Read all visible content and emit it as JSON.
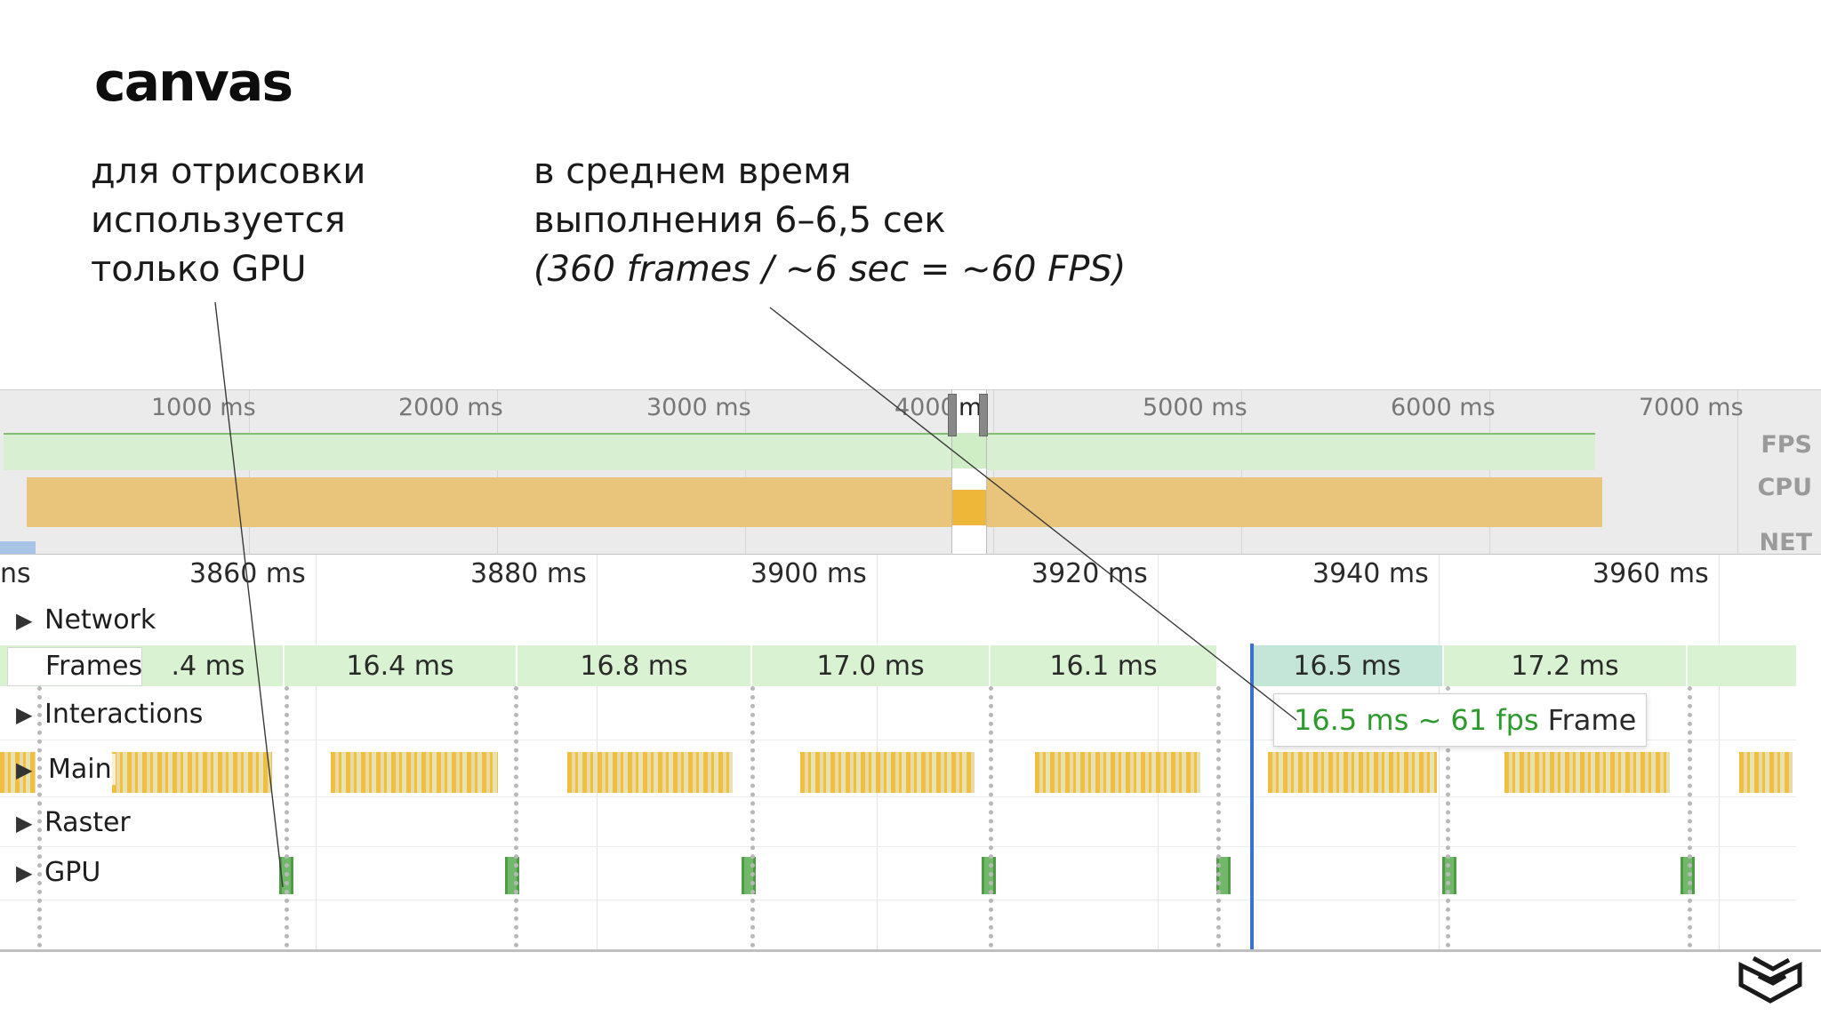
{
  "slide": {
    "title": "canvas",
    "note_left": [
      "для отрисовки",
      "используется",
      "только GPU"
    ],
    "note_right": [
      "в среднем время",
      "выполнения 6–6,5 сек"
    ],
    "note_right_italic": "(360 frames / ~6 sec = ~60 FPS)"
  },
  "overview": {
    "ticks": [
      "1000 ms",
      "2000 ms",
      "3000 ms",
      "4000",
      "5000 ms",
      "6000 ms",
      "7000 ms"
    ],
    "selection_text": "m",
    "side_labels": {
      "fps": "FPS",
      "cpu": "CPU",
      "net": "NET"
    },
    "colors": {
      "fps": "#7fc06f",
      "cpu": "#e9c47b",
      "net": "#a9c3e6"
    }
  },
  "timeline": {
    "left_partial": "ns",
    "times": [
      "3860 ms",
      "3880 ms",
      "3900 ms",
      "3920 ms",
      "3940 ms",
      "3960 ms"
    ],
    "tracks": {
      "network": "Network",
      "frames": "Frames",
      "interactions": "Interactions",
      "main": "Main",
      "raster": "Raster",
      "gpu": "GPU"
    },
    "frames": [
      {
        "label": ".4 ms"
      },
      {
        "label": "16.4 ms"
      },
      {
        "label": "16.8 ms"
      },
      {
        "label": "17.0 ms"
      },
      {
        "label": "16.1 ms"
      },
      {
        "label": "16.5 ms",
        "selected": true
      },
      {
        "label": "17.2 ms"
      }
    ],
    "tooltip": {
      "fps": "16.5 ms ~ 61 fps",
      "label": "Frame"
    },
    "colors": {
      "frame_bg": "#d9f2d1",
      "main": "#f0bf3e",
      "gpu": "#72b86a",
      "cursor": "#3e72cc"
    }
  }
}
